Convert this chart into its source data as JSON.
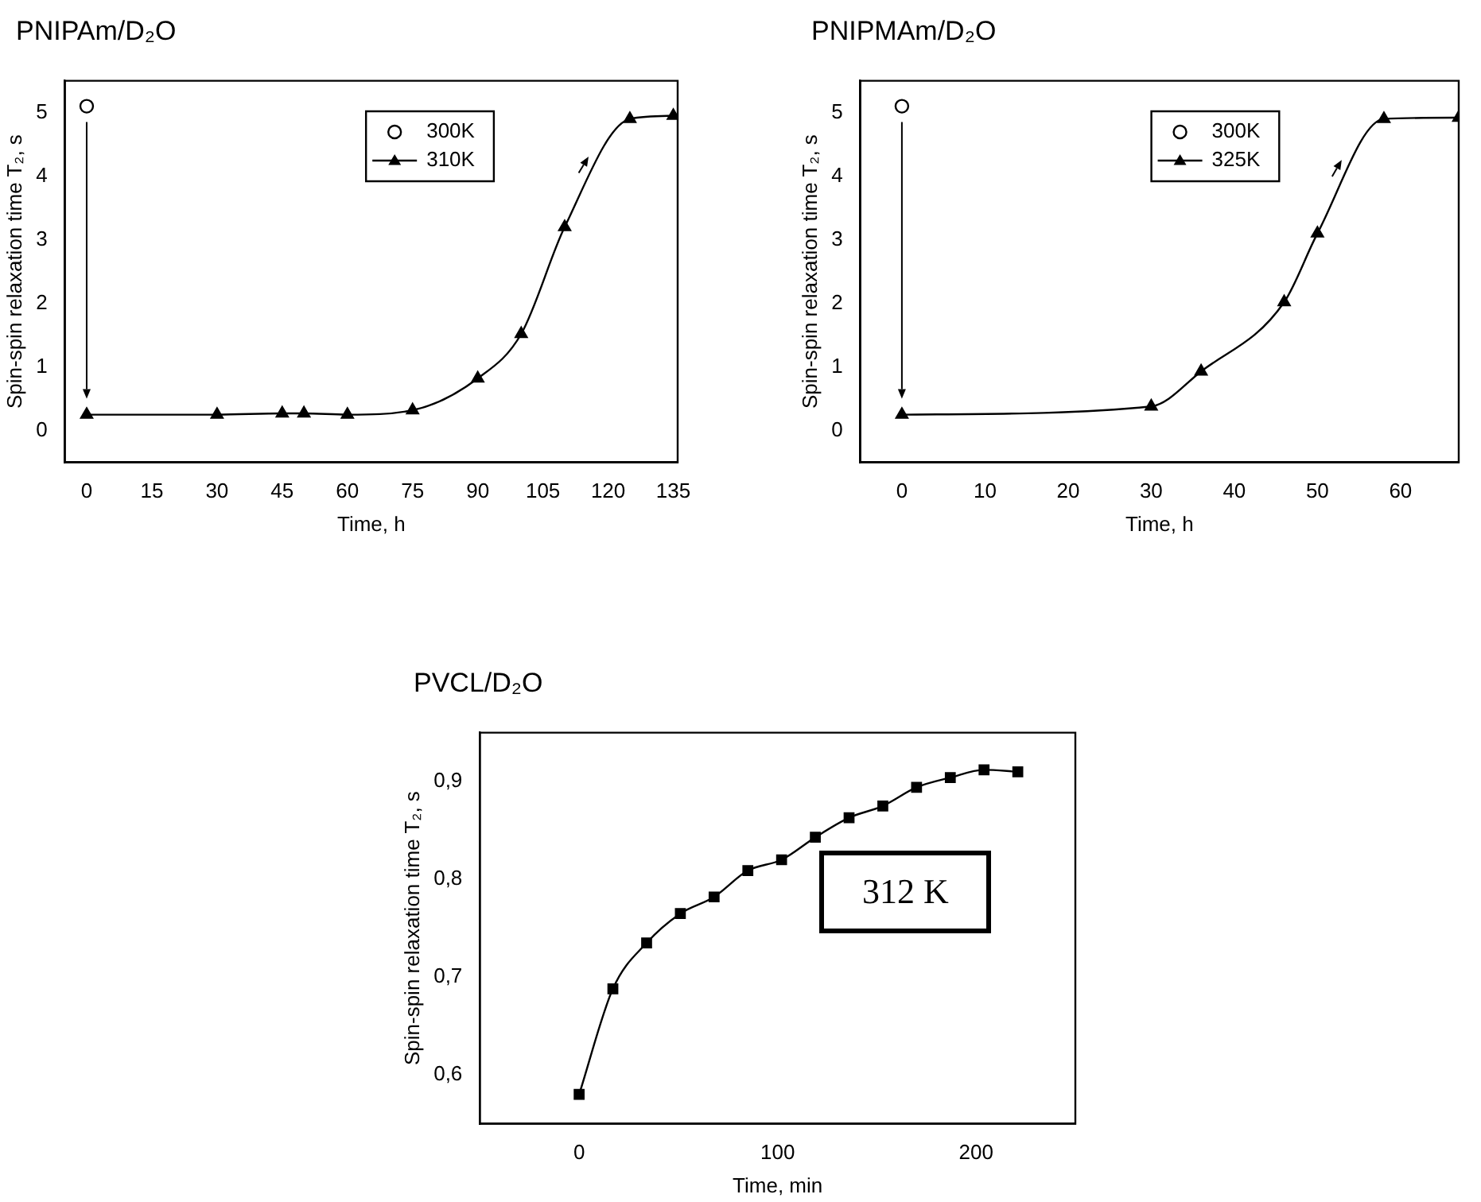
{
  "chart_data": [
    {
      "type": "line",
      "title": "PNIPAm/D₂O",
      "xlabel": "Time, h",
      "ylabel": "Spin-spin relaxation time T₂, s",
      "xlim": [
        -5,
        136
      ],
      "xticks": [
        0,
        15,
        30,
        45,
        60,
        75,
        90,
        105,
        120,
        135
      ],
      "ylim": [
        -0.5,
        5.5
      ],
      "yticks": [
        0,
        1,
        2,
        3,
        4,
        5
      ],
      "legend": "top right",
      "series": [
        {
          "name": "300K",
          "type": "scatter",
          "marker": "circle",
          "color": "#000000",
          "x": [
            0
          ],
          "values": [
            5.1
          ]
        },
        {
          "name": "310K",
          "type": "line",
          "marker": "triangle",
          "color": "#000000",
          "x": [
            0,
            30,
            45,
            50,
            60,
            75,
            90,
            100,
            110,
            125,
            135
          ],
          "values": [
            0.25,
            0.25,
            0.27,
            0.27,
            0.25,
            0.32,
            0.82,
            1.52,
            3.2,
            4.9,
            4.95
          ]
        }
      ]
    },
    {
      "type": "line",
      "title": "PNIPMAm/D₂O",
      "xlabel": "Time, h",
      "ylabel": "Spin-spin relaxation time T₂, s",
      "xlim": [
        -5,
        67
      ],
      "xticks": [
        0,
        10,
        20,
        30,
        40,
        50,
        60
      ],
      "ylim": [
        -0.5,
        5.5
      ],
      "yticks": [
        0,
        1,
        2,
        3,
        4,
        5
      ],
      "legend": "top right",
      "series": [
        {
          "name": "300K",
          "type": "scatter",
          "marker": "circle",
          "color": "#000000",
          "x": [
            0
          ],
          "values": [
            5.1
          ]
        },
        {
          "name": "325K",
          "type": "line",
          "marker": "triangle",
          "color": "#000000",
          "x": [
            0,
            30,
            36,
            46,
            50,
            58,
            67
          ],
          "values": [
            0.25,
            0.38,
            0.93,
            2.02,
            3.1,
            4.9,
            4.92
          ]
        }
      ]
    },
    {
      "type": "line",
      "title": "PVCL/D₂O",
      "xlabel": "Time, min",
      "ylabel": "Spin-spin relaxation time T₂, s",
      "xlim": [
        -50,
        250
      ],
      "xticks": [
        0,
        100,
        200
      ],
      "ylim": [
        0.55,
        0.95
      ],
      "yticks": [
        {
          "value": 0.6,
          "label": "0,6"
        },
        {
          "value": 0.7,
          "label": "0,7"
        },
        {
          "value": 0.8,
          "label": "0,8"
        },
        {
          "value": 0.9,
          "label": "0,9"
        }
      ],
      "annotations": [
        "312 K"
      ],
      "series": [
        {
          "type": "line",
          "marker": "square",
          "color": "#000000",
          "x": [
            0,
            17,
            34,
            51,
            68,
            85,
            102,
            119,
            136,
            153,
            170,
            187,
            204,
            221
          ],
          "values": [
            0.58,
            0.688,
            0.735,
            0.765,
            0.782,
            0.809,
            0.82,
            0.843,
            0.863,
            0.875,
            0.894,
            0.904,
            0.912,
            0.91
          ]
        }
      ]
    }
  ]
}
